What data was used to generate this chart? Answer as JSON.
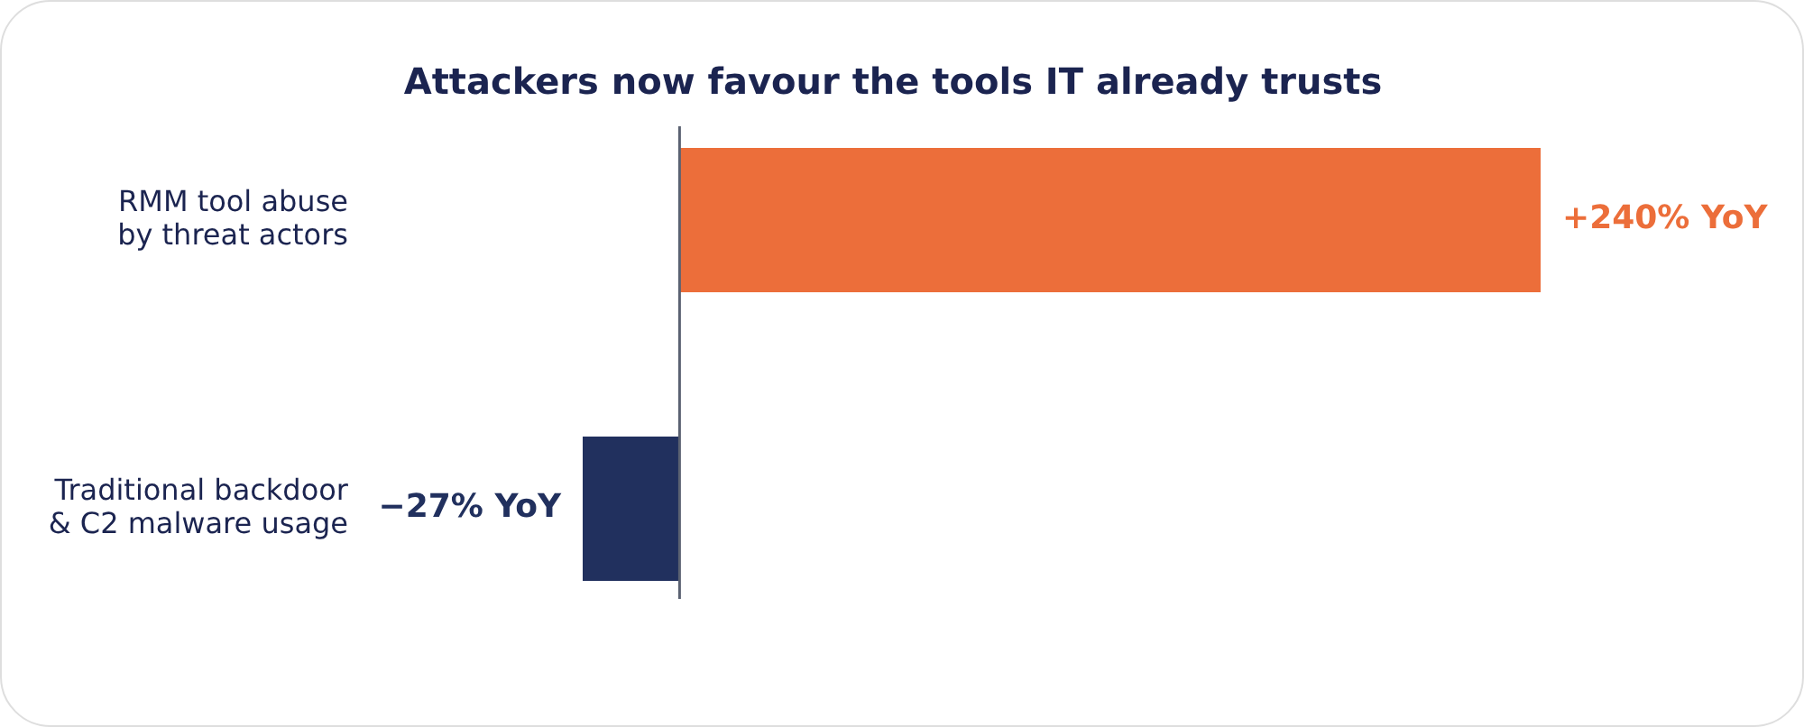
{
  "chart_data": {
    "type": "bar",
    "orientation": "horizontal",
    "title": "Attackers now favour the tools IT already trusts",
    "categories": [
      "RMM tool abuse\nby threat actors",
      "Traditional backdoor\n& C2 malware usage"
    ],
    "values": [
      240,
      -27
    ],
    "colors": [
      "#ec6e3a",
      "#21305e"
    ],
    "value_labels": [
      "+240% YoY",
      "−27% YoY"
    ],
    "ref_lines": [
      {
        "axis": "x",
        "value": 0,
        "color": "#5b6272"
      }
    ]
  }
}
